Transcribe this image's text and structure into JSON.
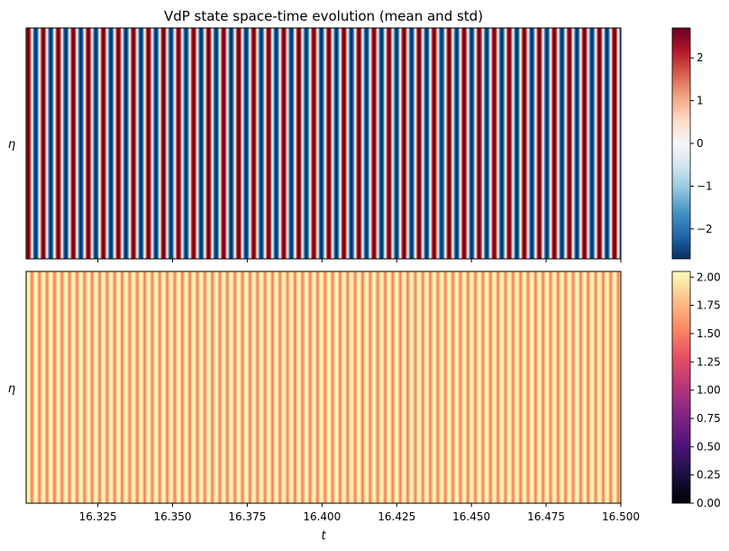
{
  "title": "VdP state space-time evolution (mean and std)",
  "chart_data": [
    {
      "type": "heatmap",
      "name": "mean",
      "xlabel": "t",
      "ylabel": "η",
      "xlim": [
        16.301,
        16.5
      ],
      "x_ticks": [
        16.325,
        16.35,
        16.375,
        16.4,
        16.425,
        16.45,
        16.475,
        16.5
      ],
      "x_tick_labels_visible": false,
      "y_ticks_visible": false,
      "colormap": "RdBu_r",
      "clim": [
        -2.7,
        2.7
      ],
      "colorbar_ticks": [
        -2,
        -1,
        0,
        1,
        2
      ],
      "colorbar_tick_labels": [
        "−2",
        "−1",
        "0",
        "1",
        "2"
      ],
      "field": {
        "description_free": true,
        "form": "amplitude*cos(2*pi*(t - t0)/period)",
        "amplitude": 2.7,
        "period": 0.00503,
        "t0": 16.3017
      }
    },
    {
      "type": "heatmap",
      "name": "std",
      "xlabel": "t",
      "ylabel": "η",
      "xlim": [
        16.301,
        16.5
      ],
      "x_ticks": [
        16.325,
        16.35,
        16.375,
        16.4,
        16.425,
        16.45,
        16.475,
        16.5
      ],
      "x_tick_labels": [
        "16.325",
        "16.350",
        "16.375",
        "16.400",
        "16.425",
        "16.450",
        "16.475",
        "16.500"
      ],
      "y_ticks_visible": false,
      "colormap": "magma",
      "clim": [
        0.0,
        2.05
      ],
      "colorbar_ticks": [
        0.0,
        0.25,
        0.5,
        0.75,
        1.0,
        1.25,
        1.5,
        1.75,
        2.0
      ],
      "colorbar_tick_labels": [
        "0.00",
        "0.25",
        "0.50",
        "0.75",
        "1.00",
        "1.25",
        "1.50",
        "1.75",
        "2.00"
      ],
      "field": {
        "form": "base + amp*|cos(2*pi*(t - t0)/period)|",
        "base": 1.45,
        "amp": 0.58,
        "period": 0.00503,
        "t0": 16.3017
      }
    }
  ]
}
